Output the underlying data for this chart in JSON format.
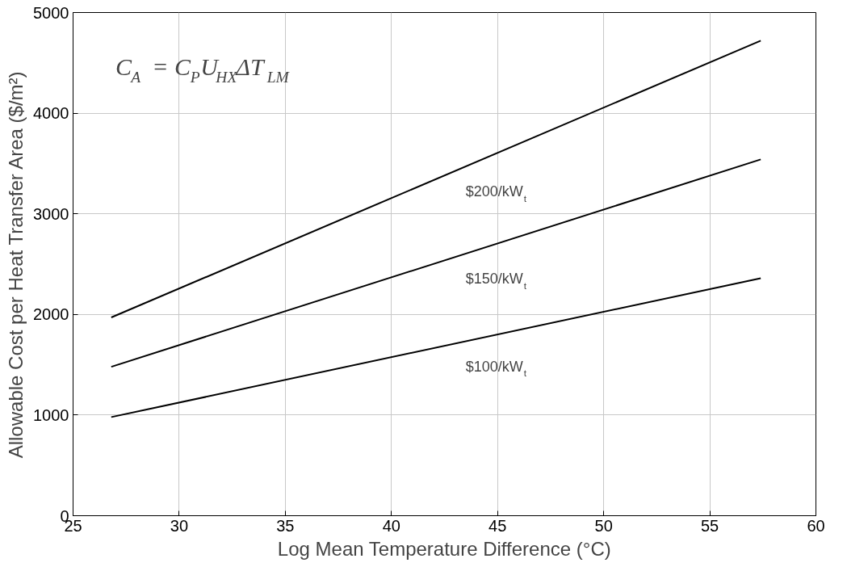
{
  "chart_data": {
    "type": "line",
    "xlabel": "Log Mean Temperature Difference (°C)",
    "ylabel": "Allowable Cost per Heat Transfer Area ($/m²)",
    "x": [
      26.8,
      57.4
    ],
    "series": [
      {
        "name": "$200/kW$_{t}$",
        "color": "#000000",
        "values": [
          1970,
          4720
        ]
      },
      {
        "name": "$150/kW$_{t}$",
        "color": "#000000",
        "values": [
          1480,
          3540
        ]
      },
      {
        "name": "$100/kW$_{t}$",
        "color": "#000000",
        "values": [
          980,
          2360
        ]
      }
    ],
    "annotations": [
      "C$_{A}$ = C$_{P}$U$_{HX}$ΔT$_{LM}$"
    ],
    "xlim": [
      25,
      60
    ],
    "ylim": [
      0,
      5000
    ],
    "xticks": [
      25,
      30,
      35,
      40,
      45,
      50,
      55,
      60
    ],
    "yticks": [
      0,
      1000,
      2000,
      3000,
      4000,
      5000
    ],
    "grid": true,
    "marker": "none",
    "line_style": "solid"
  }
}
